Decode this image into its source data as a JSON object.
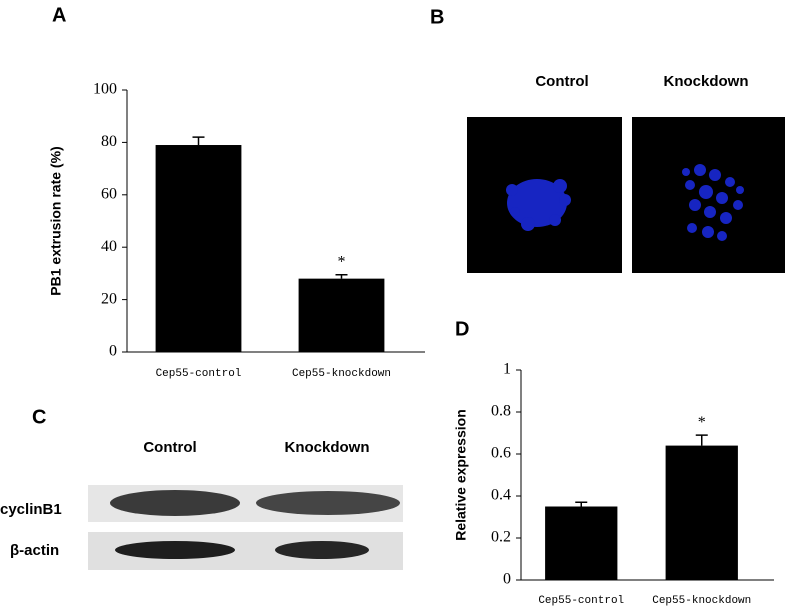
{
  "panel_labels": [
    "A",
    "B",
    "C",
    "D"
  ],
  "chart_data": [
    {
      "type": "bar",
      "y_label": "PB1 extrusion rate (%)",
      "categories": [
        "Cep55-control",
        "Cep55-knockdown"
      ],
      "values": [
        79,
        28
      ],
      "errors": [
        3,
        1.5
      ],
      "value_annotations": [
        null,
        "*"
      ],
      "color": "#000000",
      "ylim": [
        0,
        100
      ],
      "yticks": [
        0,
        20,
        40,
        60,
        80,
        100
      ]
    },
    {
      "type": "bar",
      "y_label": "Relative expression",
      "categories": [
        "Cep55-control",
        "Cep55-knockdown"
      ],
      "values": [
        0.35,
        0.64
      ],
      "errors": [
        0.02,
        0.05
      ],
      "value_annotations": [
        null,
        "*"
      ],
      "color": "#000000",
      "ylim": [
        0,
        1
      ],
      "yticks": [
        0,
        0.2,
        0.4,
        0.6,
        0.8,
        1
      ]
    }
  ],
  "panel_b": {
    "columns": [
      "Control",
      "Knockdown"
    ]
  },
  "panel_c": {
    "columns": [
      "Control",
      "Knockdown"
    ],
    "rows": [
      "cyclinB1",
      "β-actin"
    ]
  }
}
